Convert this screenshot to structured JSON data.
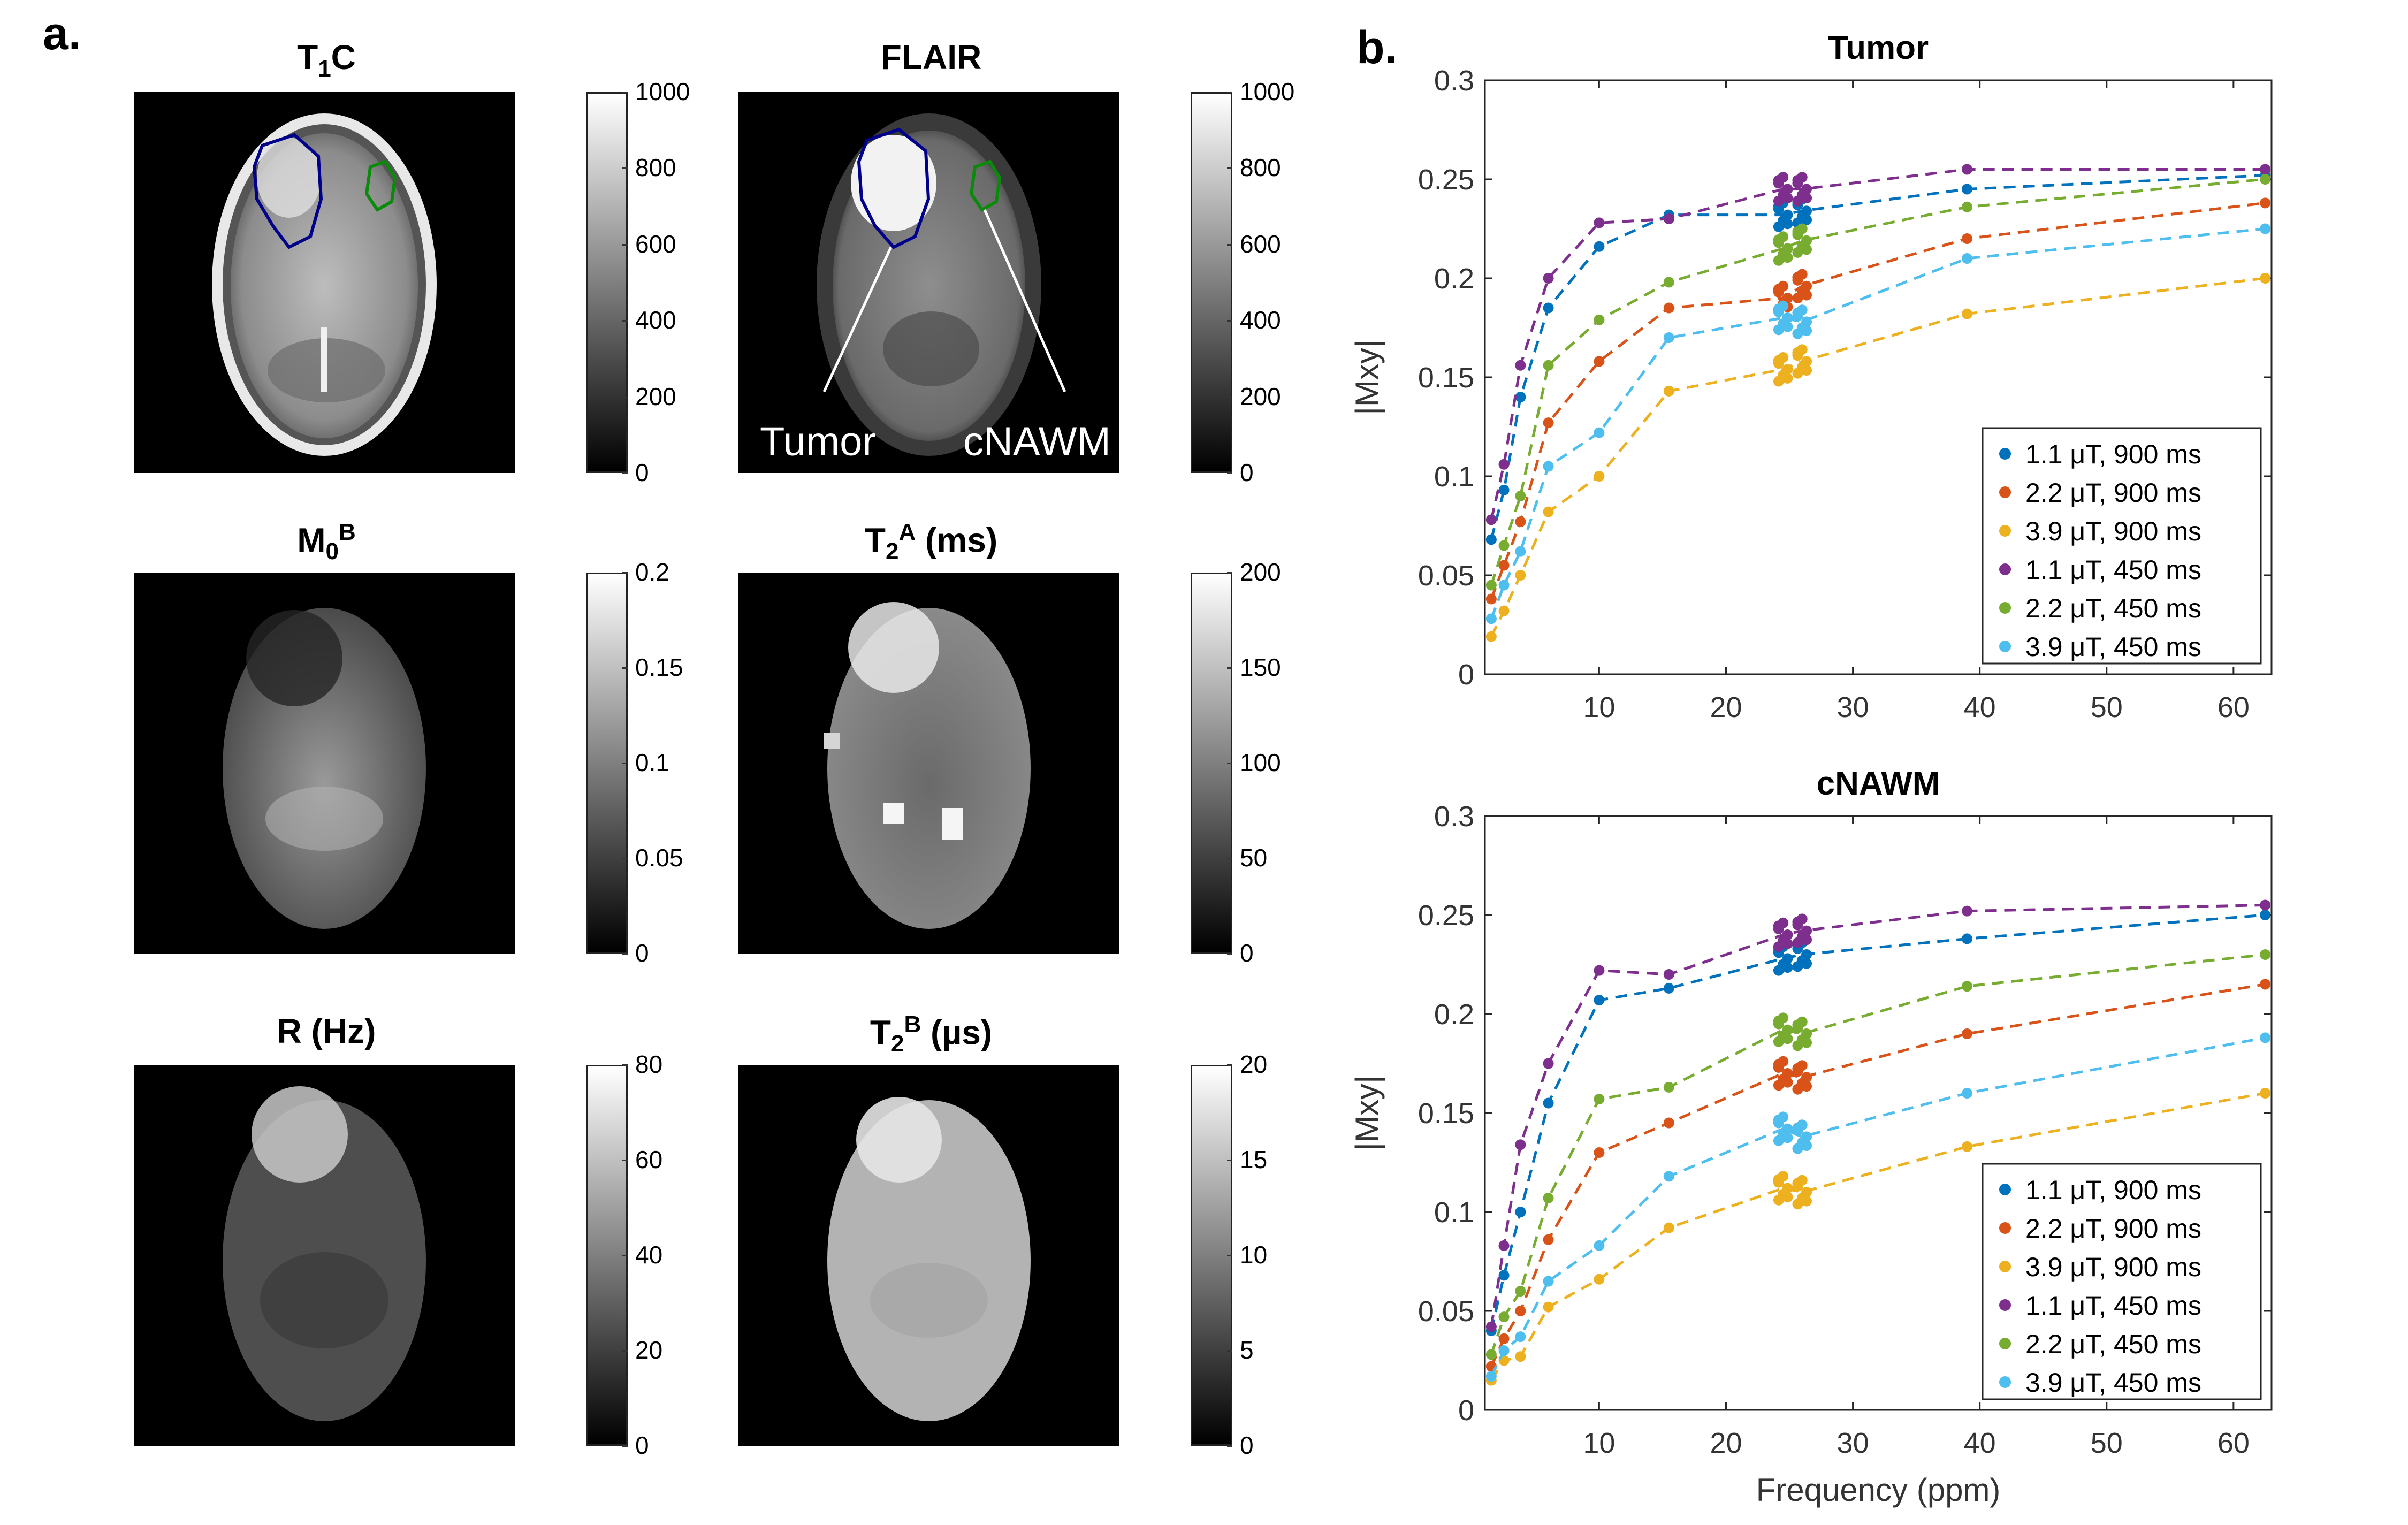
{
  "panel_a": {
    "label": "a.",
    "images": [
      {
        "id": "t1c",
        "title_main": "T",
        "title_sub": "1",
        "title_sup": "",
        "title_tail": "C",
        "colorbar": {
          "ticks": [
            "1000",
            "800",
            "600",
            "400",
            "200",
            "0"
          ]
        }
      },
      {
        "id": "flair",
        "title_main": "FLAIR",
        "title_sub": "",
        "title_sup": "",
        "title_tail": "",
        "colorbar": {
          "ticks": [
            "1000",
            "800",
            "600",
            "400",
            "200",
            "0"
          ]
        },
        "annotations": [
          "Tumor",
          "cNAWM"
        ]
      },
      {
        "id": "m0b",
        "title_main": "M",
        "title_sub": "0",
        "title_sup": "B",
        "title_tail": "",
        "colorbar": {
          "ticks": [
            "0.2",
            "0.15",
            "0.1",
            "0.05",
            "0"
          ]
        }
      },
      {
        "id": "t2a",
        "title_main": "T",
        "title_sub": "2",
        "title_sup": "A",
        "title_tail": " (ms)",
        "colorbar": {
          "ticks": [
            "200",
            "150",
            "100",
            "50",
            "0"
          ]
        }
      },
      {
        "id": "r",
        "title_main": "R (Hz)",
        "title_sub": "",
        "title_sup": "",
        "title_tail": "",
        "colorbar": {
          "ticks": [
            "80",
            "60",
            "40",
            "20",
            "0"
          ]
        }
      },
      {
        "id": "t2b",
        "title_main": "T",
        "title_sub": "2",
        "title_sup": "B",
        "title_tail": " (µs)",
        "colorbar": {
          "ticks": [
            "20",
            "15",
            "10",
            "5",
            "0"
          ]
        }
      }
    ],
    "roi_colors": {
      "tumor": "#00008b",
      "cnawm": "#0a8a0a"
    }
  },
  "panel_b": {
    "label": "b."
  },
  "chart_data": [
    {
      "type": "scatter",
      "title": "Tumor",
      "xlabel": "",
      "ylabel": "|Mxy|",
      "xlim": [
        1,
        63
      ],
      "ylim": [
        0,
        0.3
      ],
      "xticks": [
        "10",
        "20",
        "30",
        "40",
        "50",
        "60"
      ],
      "yticks": [
        "0",
        "0.05",
        "0.1",
        "0.15",
        "0.2",
        "0.25",
        "0.3"
      ],
      "x": [
        1.5,
        2.5,
        3.8,
        6.0,
        10.0,
        15.5,
        24.5,
        26.0,
        39.0,
        62.5
      ],
      "legend_position": "bottom-right",
      "series": [
        {
          "name": "1.1 μT, 900 ms",
          "color": "#0072bd",
          "values": [
            0.068,
            0.093,
            0.14,
            0.185,
            0.216,
            0.232,
            0.232,
            0.234,
            0.245,
            0.252
          ]
        },
        {
          "name": "2.2 μT, 900 ms",
          "color": "#d95319",
          "values": [
            0.038,
            0.055,
            0.077,
            0.127,
            0.158,
            0.185,
            0.19,
            0.196,
            0.22,
            0.238
          ]
        },
        {
          "name": "3.9 μT, 900 ms",
          "color": "#edb120",
          "values": [
            0.019,
            0.032,
            0.05,
            0.082,
            0.1,
            0.143,
            0.154,
            0.158,
            0.182,
            0.2
          ]
        },
        {
          "name": "1.1 μT, 450 ms",
          "color": "#7e2f8e",
          "values": [
            0.078,
            0.106,
            0.156,
            0.2,
            0.228,
            0.23,
            0.245,
            0.245,
            0.255,
            0.255
          ]
        },
        {
          "name": "2.2 μT, 450 ms",
          "color": "#77ac30",
          "values": [
            0.045,
            0.065,
            0.09,
            0.156,
            0.179,
            0.198,
            0.215,
            0.219,
            0.236,
            0.25
          ]
        },
        {
          "name": "3.9 μT, 450 ms",
          "color": "#4dbeee",
          "values": [
            0.028,
            0.045,
            0.062,
            0.105,
            0.122,
            0.17,
            0.18,
            0.178,
            0.21,
            0.225
          ]
        }
      ]
    },
    {
      "type": "scatter",
      "title": "cNAWM",
      "xlabel": "Frequency (ppm)",
      "ylabel": "|Mxy|",
      "xlim": [
        1,
        63
      ],
      "ylim": [
        0,
        0.3
      ],
      "xticks": [
        "10",
        "20",
        "30",
        "40",
        "50",
        "60"
      ],
      "yticks": [
        "0",
        "0.05",
        "0.1",
        "0.15",
        "0.2",
        "0.25",
        "0.3"
      ],
      "x": [
        1.5,
        2.5,
        3.8,
        6.0,
        10.0,
        15.5,
        24.5,
        26.0,
        39.0,
        62.5
      ],
      "legend_position": "bottom-right",
      "series": [
        {
          "name": "1.1 μT, 900 ms",
          "color": "#0072bd",
          "values": [
            0.04,
            0.068,
            0.1,
            0.155,
            0.207,
            0.213,
            0.228,
            0.23,
            0.238,
            0.25
          ]
        },
        {
          "name": "2.2 μT, 900 ms",
          "color": "#d95319",
          "values": [
            0.022,
            0.036,
            0.05,
            0.086,
            0.13,
            0.145,
            0.17,
            0.168,
            0.19,
            0.215
          ]
        },
        {
          "name": "3.9 μT, 900 ms",
          "color": "#edb120",
          "values": [
            0.015,
            0.025,
            0.027,
            0.052,
            0.066,
            0.092,
            0.112,
            0.11,
            0.133,
            0.16
          ]
        },
        {
          "name": "1.1 μT, 450 ms",
          "color": "#7e2f8e",
          "values": [
            0.042,
            0.083,
            0.134,
            0.175,
            0.222,
            0.22,
            0.24,
            0.242,
            0.252,
            0.255
          ]
        },
        {
          "name": "2.2 μT, 450 ms",
          "color": "#77ac30",
          "values": [
            0.028,
            0.047,
            0.06,
            0.107,
            0.157,
            0.163,
            0.192,
            0.19,
            0.214,
            0.23
          ]
        },
        {
          "name": "3.9 μT, 450 ms",
          "color": "#4dbeee",
          "values": [
            0.017,
            0.03,
            0.037,
            0.065,
            0.083,
            0.118,
            0.142,
            0.138,
            0.16,
            0.188
          ]
        }
      ]
    }
  ]
}
